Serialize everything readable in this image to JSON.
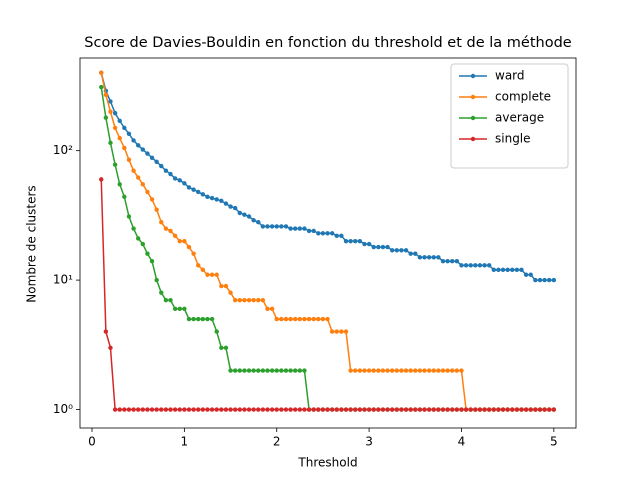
{
  "chart_data": {
    "type": "line",
    "title": "Score de Davies-Bouldin en fonction du threshold et de la méthode",
    "x_label": "Threshold",
    "y_label": "Nombre de clusters",
    "log_y": true,
    "legend": "upper right",
    "xlim": [
      -0.13,
      5.24
    ],
    "xticks": [
      0,
      1,
      2,
      3,
      4,
      5
    ],
    "ylim": [
      0.72,
      520
    ],
    "yticks": [
      {
        "value": 1,
        "label": "10⁰"
      },
      {
        "value": 10,
        "label": "10¹"
      },
      {
        "value": 100,
        "label": "10²"
      }
    ],
    "x": [
      0.1,
      0.15,
      0.2,
      0.25,
      0.3,
      0.35,
      0.4,
      0.45,
      0.5,
      0.55,
      0.6,
      0.65,
      0.7,
      0.75,
      0.8,
      0.85,
      0.9,
      0.95,
      1.0,
      1.05,
      1.1,
      1.15,
      1.2,
      1.25,
      1.3,
      1.35,
      1.4,
      1.45,
      1.5,
      1.55,
      1.6,
      1.65,
      1.7,
      1.75,
      1.8,
      1.85,
      1.9,
      1.95,
      2.0,
      2.05,
      2.1,
      2.15,
      2.2,
      2.25,
      2.3,
      2.35,
      2.4,
      2.45,
      2.5,
      2.55,
      2.6,
      2.65,
      2.7,
      2.75,
      2.8,
      2.85,
      2.9,
      2.95,
      3.0,
      3.05,
      3.1,
      3.15,
      3.2,
      3.25,
      3.3,
      3.35,
      3.4,
      3.45,
      3.5,
      3.55,
      3.6,
      3.65,
      3.7,
      3.75,
      3.8,
      3.85,
      3.9,
      3.95,
      4.0,
      4.05,
      4.1,
      4.15,
      4.2,
      4.25,
      4.3,
      4.35,
      4.4,
      4.45,
      4.5,
      4.55,
      4.6,
      4.65,
      4.7,
      4.75,
      4.8,
      4.85,
      4.9,
      4.95,
      5.0
    ],
    "series": [
      {
        "name": "ward",
        "color": "#1f77b4",
        "values": [
          400,
          290,
          240,
          195,
          170,
          150,
          135,
          120,
          110,
          102,
          95,
          88,
          82,
          76,
          70,
          66,
          61,
          59,
          56,
          52,
          50,
          48,
          46,
          44,
          43,
          42,
          41,
          39,
          37,
          36,
          33,
          32,
          31,
          29,
          28,
          26,
          26,
          26,
          26,
          26,
          26,
          25,
          25,
          25,
          25,
          24,
          24,
          23,
          23,
          23,
          23,
          22,
          22,
          20,
          20,
          20,
          20,
          19,
          19,
          18,
          18,
          18,
          18,
          17,
          17,
          17,
          17,
          16,
          16,
          15,
          15,
          15,
          15,
          15,
          14,
          14,
          14,
          14,
          13,
          13,
          13,
          13,
          13,
          13,
          13,
          12,
          12,
          12,
          12,
          12,
          12,
          12,
          11,
          11,
          10,
          10,
          10,
          10,
          10
        ]
      },
      {
        "name": "complete",
        "color": "#ff7f0e",
        "values": [
          400,
          270,
          200,
          150,
          125,
          105,
          85,
          70,
          62,
          55,
          48,
          42,
          35,
          28,
          25,
          24,
          22,
          20,
          20,
          18,
          16,
          13,
          12,
          11,
          11,
          11,
          9,
          9,
          8,
          7,
          7,
          7,
          7,
          7,
          7,
          7,
          6,
          6,
          5,
          5,
          5,
          5,
          5,
          5,
          5,
          5,
          5,
          5,
          5,
          5,
          4,
          4,
          4,
          4,
          2,
          2,
          2,
          2,
          2,
          2,
          2,
          2,
          2,
          2,
          2,
          2,
          2,
          2,
          2,
          2,
          2,
          2,
          2,
          2,
          2,
          2,
          2,
          2,
          2,
          1,
          1,
          1,
          1,
          1,
          1,
          1,
          1,
          1,
          1,
          1,
          1,
          1,
          1,
          1,
          1,
          1,
          1,
          1,
          1
        ]
      },
      {
        "name": "average",
        "color": "#2ca02c",
        "values": [
          310,
          180,
          115,
          78,
          55,
          44,
          31,
          25,
          21,
          19,
          16,
          14,
          10,
          8,
          7,
          7,
          6,
          6,
          6,
          5,
          5,
          5,
          5,
          5,
          5,
          4,
          3,
          3,
          2,
          2,
          2,
          2,
          2,
          2,
          2,
          2,
          2,
          2,
          2,
          2,
          2,
          2,
          2,
          2,
          2,
          1,
          1,
          1,
          1,
          1,
          1,
          1,
          1,
          1,
          1,
          1,
          1,
          1,
          1,
          1,
          1,
          1,
          1,
          1,
          1,
          1,
          1,
          1,
          1,
          1,
          1,
          1,
          1,
          1,
          1,
          1,
          1,
          1,
          1,
          1,
          1,
          1,
          1,
          1,
          1,
          1,
          1,
          1,
          1,
          1,
          1,
          1,
          1,
          1,
          1,
          1,
          1,
          1,
          1
        ]
      },
      {
        "name": "single",
        "color": "#d62728",
        "values": [
          60,
          4,
          3,
          1,
          1,
          1,
          1,
          1,
          1,
          1,
          1,
          1,
          1,
          1,
          1,
          1,
          1,
          1,
          1,
          1,
          1,
          1,
          1,
          1,
          1,
          1,
          1,
          1,
          1,
          1,
          1,
          1,
          1,
          1,
          1,
          1,
          1,
          1,
          1,
          1,
          1,
          1,
          1,
          1,
          1,
          1,
          1,
          1,
          1,
          1,
          1,
          1,
          1,
          1,
          1,
          1,
          1,
          1,
          1,
          1,
          1,
          1,
          1,
          1,
          1,
          1,
          1,
          1,
          1,
          1,
          1,
          1,
          1,
          1,
          1,
          1,
          1,
          1,
          1,
          1,
          1,
          1,
          1,
          1,
          1,
          1,
          1,
          1,
          1,
          1,
          1,
          1,
          1,
          1,
          1,
          1,
          1,
          1,
          1
        ]
      }
    ]
  }
}
